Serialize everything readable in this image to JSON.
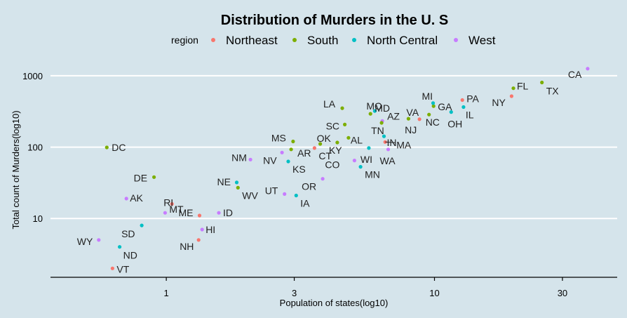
{
  "chart_data": {
    "type": "scatter",
    "title": "Distribution of Murders in the U. S",
    "xlabel": "Population of states(log10)",
    "ylabel": "Total count of Murders(log10)",
    "x_scale": "log10",
    "y_scale": "log10",
    "xlim": [
      0.37,
      48
    ],
    "ylim": [
      1.5,
      1500
    ],
    "x_ticks": [
      1,
      3,
      10,
      30
    ],
    "x_tick_labels": [
      "1",
      "3",
      "10",
      "30"
    ],
    "y_ticks": [
      10,
      100,
      1000
    ],
    "y_tick_labels": [
      "10",
      "100",
      "1000"
    ],
    "grid": true,
    "legend": {
      "title": "region",
      "position": "top",
      "entries": [
        {
          "name": "Northeast",
          "color": "#f8766d"
        },
        {
          "name": "South",
          "color": "#7cae00"
        },
        {
          "name": "North Central",
          "color": "#00bfc4"
        },
        {
          "name": "West",
          "color": "#c77cff"
        }
      ]
    },
    "points": [
      {
        "label": "AL",
        "region": "South",
        "x": 4.78,
        "y": 135
      },
      {
        "label": "AK",
        "region": "West",
        "x": 0.71,
        "y": 19
      },
      {
        "label": "AZ",
        "region": "West",
        "x": 6.39,
        "y": 232
      },
      {
        "label": "AR",
        "region": "South",
        "x": 2.92,
        "y": 93
      },
      {
        "label": "CA",
        "region": "West",
        "x": 37.25,
        "y": 1257
      },
      {
        "label": "CO",
        "region": "West",
        "x": 5.03,
        "y": 65
      },
      {
        "label": "CT",
        "region": "Northeast",
        "x": 3.57,
        "y": 97
      },
      {
        "label": "DE",
        "region": "South",
        "x": 0.9,
        "y": 38
      },
      {
        "label": "DC",
        "region": "South",
        "x": 0.6,
        "y": 99
      },
      {
        "label": "FL",
        "region": "South",
        "x": 19.69,
        "y": 669
      },
      {
        "label": "GA",
        "region": "South",
        "x": 9.92,
        "y": 376
      },
      {
        "label": "HI",
        "region": "West",
        "x": 1.36,
        "y": 7
      },
      {
        "label": "ID",
        "region": "West",
        "x": 1.57,
        "y": 12
      },
      {
        "label": "IL",
        "region": "North Central",
        "x": 12.83,
        "y": 364
      },
      {
        "label": "IN",
        "region": "North Central",
        "x": 6.48,
        "y": 142
      },
      {
        "label": "IA",
        "region": "North Central",
        "x": 3.05,
        "y": 21
      },
      {
        "label": "KS",
        "region": "North Central",
        "x": 2.85,
        "y": 63
      },
      {
        "label": "KY",
        "region": "South",
        "x": 4.34,
        "y": 116
      },
      {
        "label": "LA",
        "region": "South",
        "x": 4.53,
        "y": 351
      },
      {
        "label": "ME",
        "region": "Northeast",
        "x": 1.33,
        "y": 11
      },
      {
        "label": "MD",
        "region": "South",
        "x": 5.77,
        "y": 293
      },
      {
        "label": "MA",
        "region": "Northeast",
        "x": 6.55,
        "y": 118
      },
      {
        "label": "MI",
        "region": "North Central",
        "x": 9.88,
        "y": 413
      },
      {
        "label": "MN",
        "region": "North Central",
        "x": 5.3,
        "y": 53
      },
      {
        "label": "MS",
        "region": "South",
        "x": 2.97,
        "y": 120
      },
      {
        "label": "MO",
        "region": "North Central",
        "x": 5.99,
        "y": 321
      },
      {
        "label": "MT",
        "region": "West",
        "x": 0.99,
        "y": 12
      },
      {
        "label": "NE",
        "region": "North Central",
        "x": 1.83,
        "y": 32
      },
      {
        "label": "NV",
        "region": "West",
        "x": 2.7,
        "y": 84
      },
      {
        "label": "NH",
        "region": "Northeast",
        "x": 1.32,
        "y": 5
      },
      {
        "label": "NJ",
        "region": "Northeast",
        "x": 8.79,
        "y": 246
      },
      {
        "label": "NM",
        "region": "West",
        "x": 2.06,
        "y": 67
      },
      {
        "label": "NY",
        "region": "Northeast",
        "x": 19.38,
        "y": 517
      },
      {
        "label": "NC",
        "region": "South",
        "x": 9.54,
        "y": 286
      },
      {
        "label": "ND",
        "region": "North Central",
        "x": 0.67,
        "y": 4
      },
      {
        "label": "OH",
        "region": "North Central",
        "x": 11.54,
        "y": 310
      },
      {
        "label": "OK",
        "region": "South",
        "x": 3.75,
        "y": 111
      },
      {
        "label": "OR",
        "region": "West",
        "x": 3.83,
        "y": 36
      },
      {
        "label": "PA",
        "region": "Northeast",
        "x": 12.7,
        "y": 457
      },
      {
        "label": "RI",
        "region": "Northeast",
        "x": 1.05,
        "y": 16
      },
      {
        "label": "SC",
        "region": "South",
        "x": 4.63,
        "y": 207
      },
      {
        "label": "SD",
        "region": "North Central",
        "x": 0.81,
        "y": 8
      },
      {
        "label": "TN",
        "region": "South",
        "x": 6.35,
        "y": 219
      },
      {
        "label": "TX",
        "region": "South",
        "x": 25.15,
        "y": 805
      },
      {
        "label": "UT",
        "region": "West",
        "x": 2.76,
        "y": 22
      },
      {
        "label": "VT",
        "region": "Northeast",
        "x": 0.63,
        "y": 2
      },
      {
        "label": "VA",
        "region": "South",
        "x": 8.0,
        "y": 250
      },
      {
        "label": "WA",
        "region": "West",
        "x": 6.72,
        "y": 93
      },
      {
        "label": "WV",
        "region": "South",
        "x": 1.85,
        "y": 27
      },
      {
        "label": "WI",
        "region": "North Central",
        "x": 5.69,
        "y": 97
      },
      {
        "label": "WY",
        "region": "West",
        "x": 0.56,
        "y": 5
      }
    ]
  }
}
